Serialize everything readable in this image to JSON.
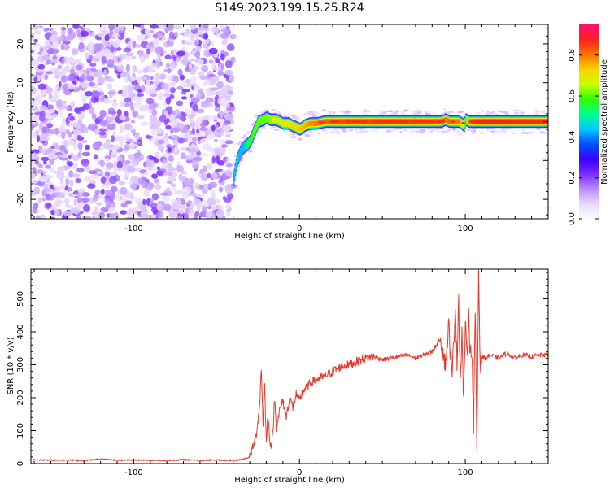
{
  "title": "S149.2023.199.15.25.R24",
  "chart_data": [
    {
      "type": "heatmap",
      "xlabel": "Height of straight line (km)",
      "ylabel": "Frequency (Hz)",
      "xlim": [
        -162,
        150
      ],
      "ylim": [
        -25,
        25
      ],
      "xticks": [
        -100,
        0,
        100
      ],
      "yticks": [
        -20,
        -10,
        0,
        10,
        20
      ],
      "colorbar": {
        "label": "Normalized spectral amplitude",
        "range": [
          0.0,
          0.95
        ],
        "ticks": [
          0.0,
          0.2,
          0.4,
          0.6,
          0.8
        ],
        "colormap": [
          "#ffffff",
          "#e8d8ff",
          "#b98cff",
          "#7a2bff",
          "#3a00ff",
          "#0050ff",
          "#00c8ff",
          "#00ff90",
          "#30ff00",
          "#c8ff00",
          "#ffd000",
          "#ff7000",
          "#ff2020",
          "#ff1070"
        ]
      },
      "noise_region_x": [
        -162,
        -40
      ],
      "ridge": {
        "x": [
          -40,
          -38,
          -35,
          -32,
          -30,
          -28,
          -25,
          -22,
          -20,
          -18,
          -15,
          -12,
          -10,
          -7,
          -5,
          -2,
          0,
          3,
          6,
          10,
          15,
          20,
          30,
          40,
          50,
          60,
          70,
          80,
          85,
          88,
          90,
          93,
          96,
          99,
          100,
          102,
          105,
          110,
          120,
          130,
          140,
          150
        ],
        "freq": [
          -15,
          -10,
          -7,
          -6,
          -5,
          -3,
          0,
          0.5,
          1,
          0.5,
          0.5,
          0,
          -0.5,
          -0.5,
          -1,
          -1.5,
          -2,
          -1,
          -0.5,
          -0.5,
          0,
          0,
          0,
          0,
          0,
          0,
          0,
          0,
          0,
          0.5,
          0,
          0,
          0,
          -1,
          0.5,
          0,
          0,
          0,
          0,
          0,
          0,
          0
        ],
        "amplitude": [
          0.5,
          0.55,
          0.5,
          0.55,
          0.55,
          0.6,
          0.62,
          0.63,
          0.65,
          0.66,
          0.68,
          0.7,
          0.7,
          0.72,
          0.72,
          0.72,
          0.74,
          0.76,
          0.78,
          0.8,
          0.82,
          0.84,
          0.85,
          0.85,
          0.86,
          0.86,
          0.85,
          0.85,
          0.84,
          0.8,
          0.82,
          0.8,
          0.8,
          0.65,
          0.6,
          0.8,
          0.86,
          0.88,
          0.88,
          0.87,
          0.87,
          0.87
        ],
        "width_hz": 1.6
      }
    },
    {
      "type": "line",
      "xlabel": "Height of straight line (km)",
      "ylabel": "SNR (10 * v/v)",
      "xlim": [
        -162,
        150
      ],
      "ylim": [
        0,
        590
      ],
      "xticks": [
        -100,
        0,
        100
      ],
      "yticks": [
        0,
        100,
        200,
        300,
        400,
        500
      ],
      "series": [
        {
          "color": "#e8392b",
          "x": [
            -162,
            -150,
            -140,
            -130,
            -120,
            -110,
            -100,
            -90,
            -80,
            -70,
            -60,
            -50,
            -40,
            -35,
            -30,
            -28,
            -26,
            -24,
            -23,
            -22,
            -21,
            -20,
            -19,
            -18,
            -17,
            -16,
            -15,
            -14,
            -12,
            -10,
            -8,
            -6,
            -4,
            -2,
            0,
            2,
            4,
            6,
            8,
            10,
            15,
            20,
            25,
            30,
            35,
            40,
            45,
            50,
            55,
            60,
            65,
            70,
            75,
            80,
            85,
            88,
            90,
            92,
            94,
            95,
            96,
            97,
            98,
            99,
            100,
            101,
            102,
            103,
            104,
            105,
            106,
            107,
            108,
            109,
            110,
            112,
            115,
            120,
            125,
            130,
            135,
            140,
            145,
            150
          ],
          "values": [
            12,
            10,
            11,
            9,
            14,
            10,
            11,
            10,
            9,
            12,
            10,
            11,
            9,
            12,
            20,
            50,
            90,
            180,
            290,
            120,
            240,
            60,
            150,
            80,
            50,
            90,
            200,
            110,
            160,
            190,
            140,
            200,
            170,
            210,
            190,
            220,
            230,
            240,
            250,
            255,
            265,
            280,
            295,
            300,
            310,
            320,
            325,
            315,
            320,
            325,
            330,
            320,
            330,
            340,
            380,
            300,
            420,
            260,
            480,
            300,
            510,
            250,
            400,
            180,
            430,
            320,
            460,
            330,
            350,
            110,
            470,
            40,
            590,
            300,
            325,
            320,
            330,
            320,
            335,
            320,
            330,
            325,
            330,
            330
          ]
        }
      ]
    }
  ]
}
